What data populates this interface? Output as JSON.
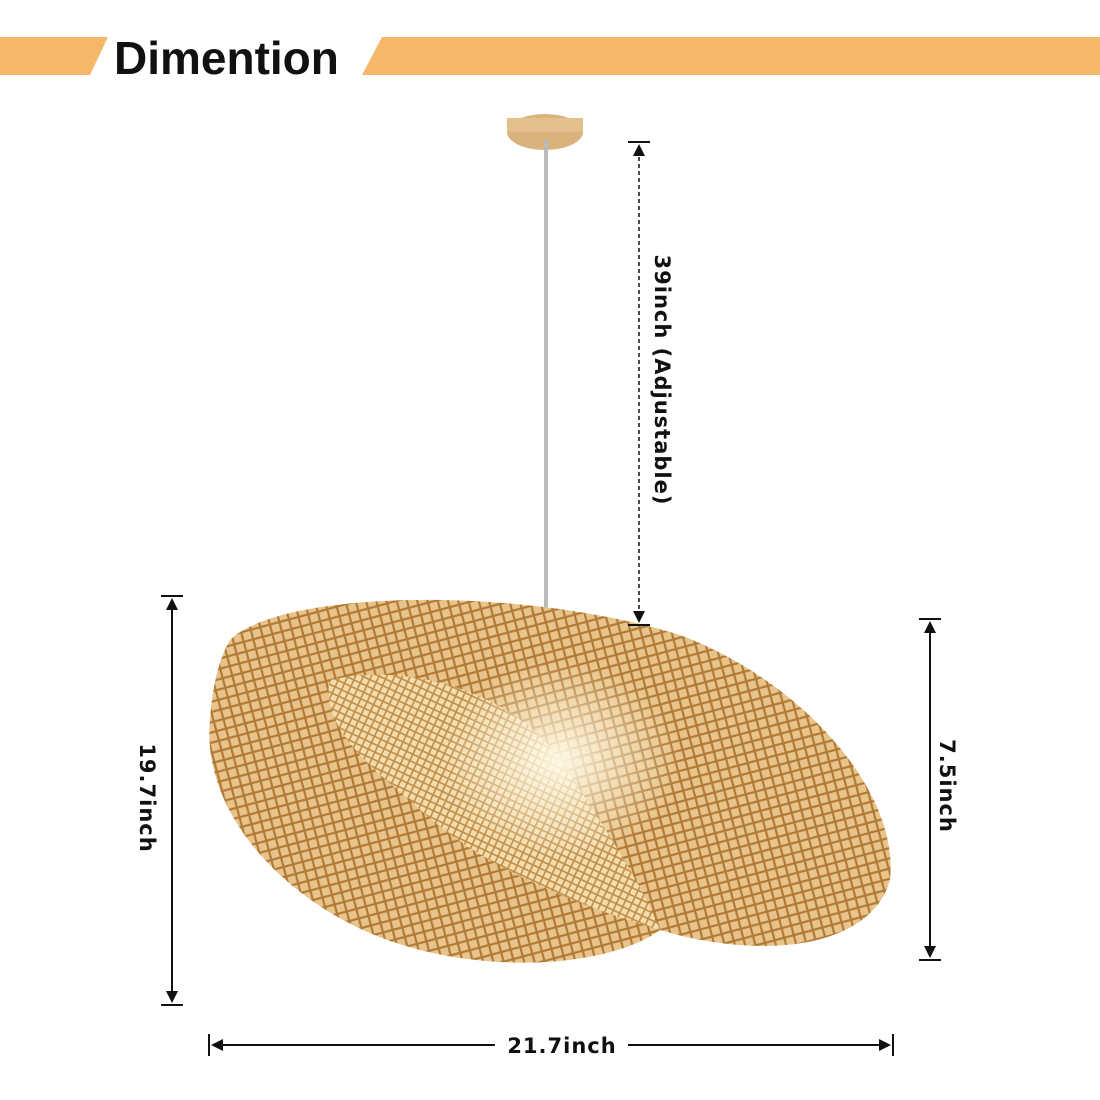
{
  "header": {
    "title": "Dimention"
  },
  "dimensions": {
    "cord": "39inch (Adjustable)",
    "height": "19.7inch",
    "shade_height": "7.5inch",
    "width": "21.7inch"
  }
}
